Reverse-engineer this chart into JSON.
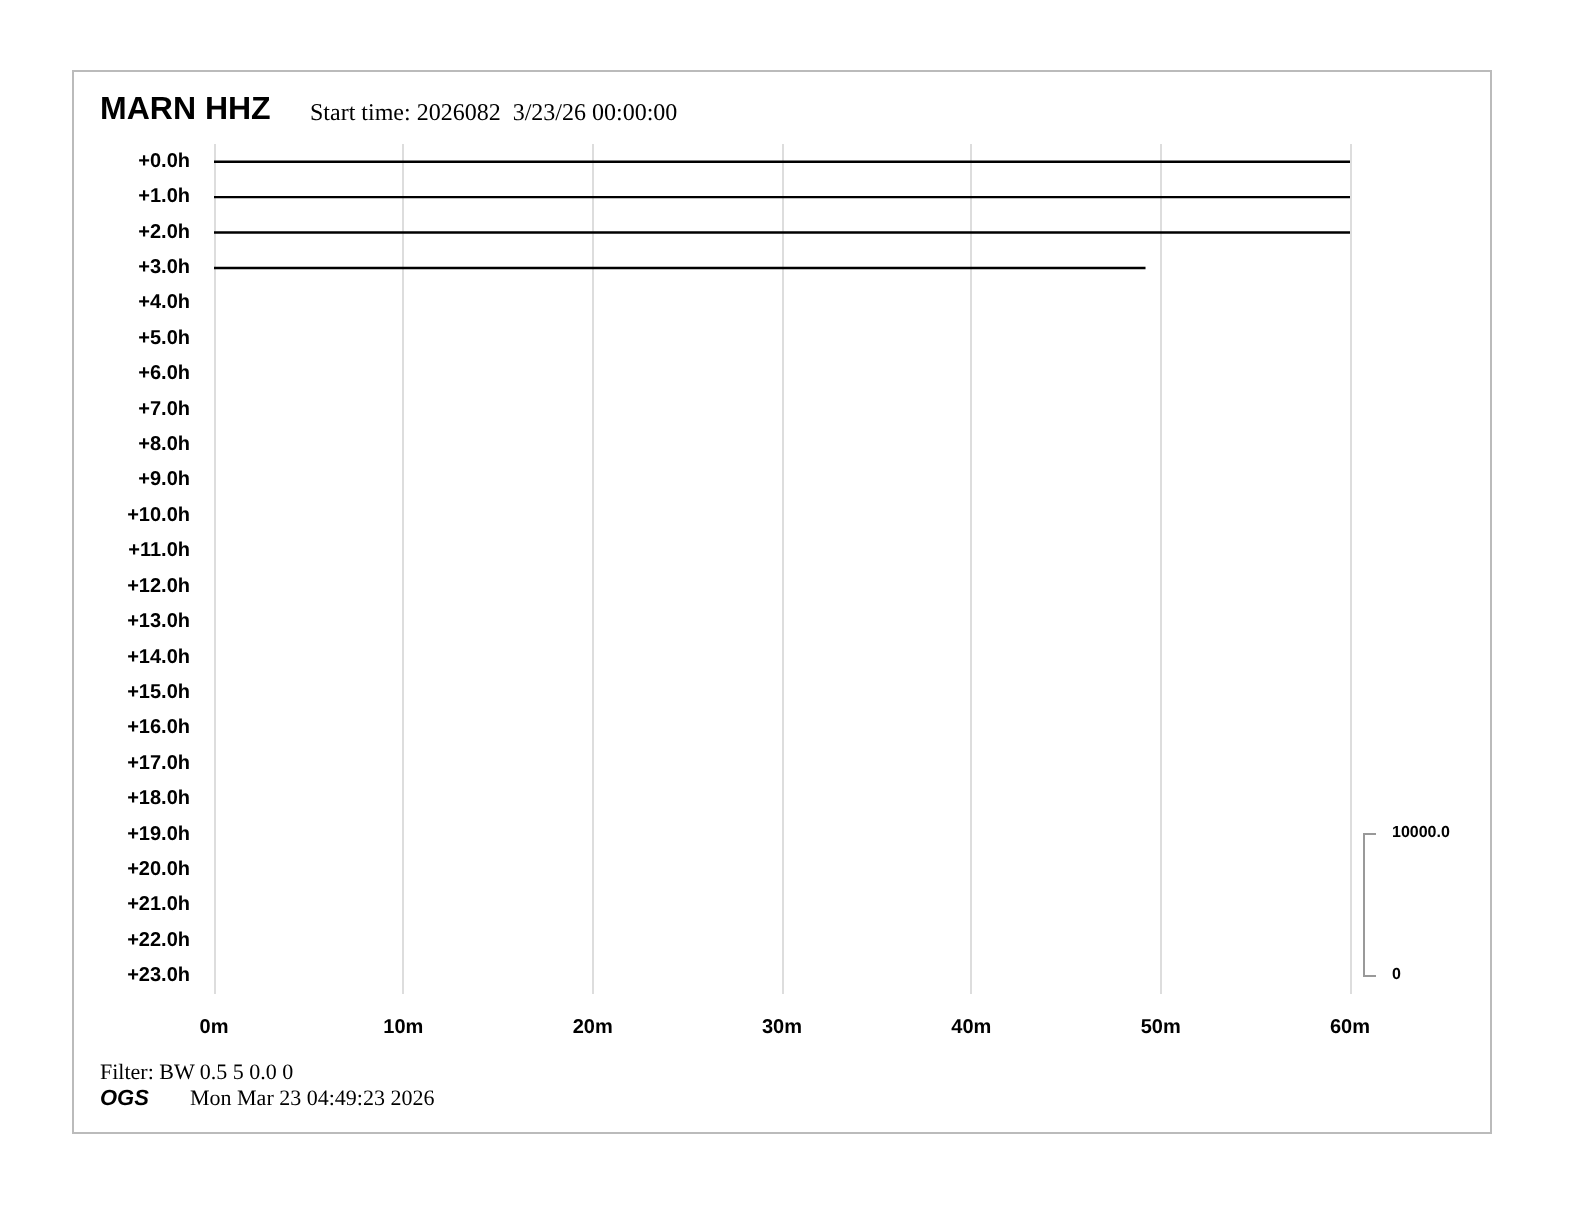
{
  "chart_data": {
    "type": "line",
    "title": "MARN HHZ",
    "subtitle": "Start time: 2026082  3/23/26 00:00:00",
    "annotations": [
      "Filter: BW 0.5 5 0.0 0",
      "OGS",
      "Mon Mar 23 04:49:23 2026",
      "10000.0",
      "0"
    ],
    "series": [
      {
        "color": "#000000",
        "x": [
          0,
          60
        ],
        "values": [
          0,
          0
        ]
      },
      {
        "color": "#000000",
        "x": [
          0,
          60
        ],
        "values": [
          1,
          1
        ]
      },
      {
        "color": "#000000",
        "x": [
          0,
          60
        ],
        "values": [
          2,
          2
        ]
      },
      {
        "color": "#000000",
        "x": [
          0,
          49.2
        ],
        "values": [
          3,
          3
        ]
      }
    ],
    "xlim": [
      0,
      60
    ],
    "xticks": [
      {
        "value": 0,
        "label": "0m"
      },
      {
        "value": 10,
        "label": "10m"
      },
      {
        "value": 20,
        "label": "20m"
      },
      {
        "value": 30,
        "label": "30m"
      },
      {
        "value": 40,
        "label": "40m"
      },
      {
        "value": 50,
        "label": "50m"
      },
      {
        "value": 60,
        "label": "60m"
      }
    ],
    "ylim": [
      23.5,
      -0.5
    ],
    "yticks": [
      {
        "value": 0,
        "label": "+0.0h"
      },
      {
        "value": 1,
        "label": "+1.0h"
      },
      {
        "value": 2,
        "label": "+2.0h"
      },
      {
        "value": 3,
        "label": "+3.0h"
      },
      {
        "value": 4,
        "label": "+4.0h"
      },
      {
        "value": 5,
        "label": "+5.0h"
      },
      {
        "value": 6,
        "label": "+6.0h"
      },
      {
        "value": 7,
        "label": "+7.0h"
      },
      {
        "value": 8,
        "label": "+8.0h"
      },
      {
        "value": 9,
        "label": "+9.0h"
      },
      {
        "value": 10,
        "label": "+10.0h"
      },
      {
        "value": 11,
        "label": "+11.0h"
      },
      {
        "value": 12,
        "label": "+12.0h"
      },
      {
        "value": 13,
        "label": "+13.0h"
      },
      {
        "value": 14,
        "label": "+14.0h"
      },
      {
        "value": 15,
        "label": "+15.0h"
      },
      {
        "value": 16,
        "label": "+16.0h"
      },
      {
        "value": 17,
        "label": "+17.0h"
      },
      {
        "value": 18,
        "label": "+18.0h"
      },
      {
        "value": 19,
        "label": "+19.0h"
      },
      {
        "value": 20,
        "label": "+20.0h"
      },
      {
        "value": 21,
        "label": "+21.0h"
      },
      {
        "value": 22,
        "label": "+22.0h"
      },
      {
        "value": 23,
        "label": "+23.0h"
      }
    ],
    "grid": "x"
  }
}
